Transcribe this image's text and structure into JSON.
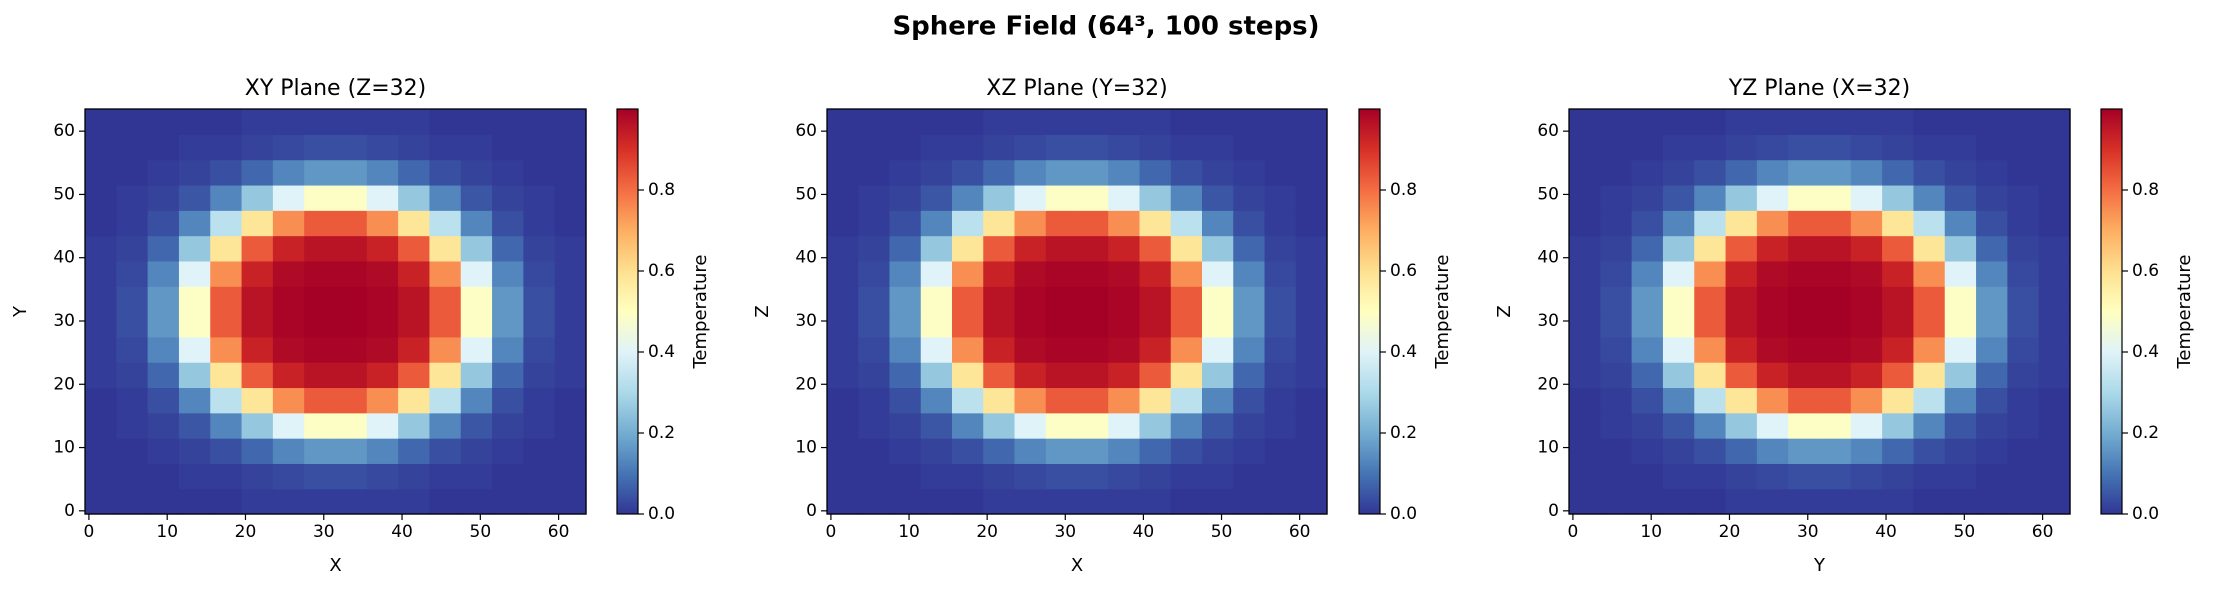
{
  "title": "Sphere Field (64³, 100 steps)",
  "chart_data": [
    {
      "type": "heatmap",
      "title": "XY Plane (Z=32)",
      "xlabel": "X",
      "ylabel": "Y",
      "colorbar_label": "Temperature",
      "colormap": "RdYlBu_r",
      "xlim": [
        -0.5,
        63.5
      ],
      "ylim": [
        -0.5,
        63.5
      ],
      "xticks": [
        0,
        10,
        20,
        30,
        40,
        50,
        60
      ],
      "yticks": [
        0,
        10,
        20,
        30,
        40,
        50,
        60
      ],
      "clim": [
        0,
        1
      ],
      "cticks": [
        {
          "value": 0,
          "label": "0.0"
        },
        {
          "value": 0.2,
          "label": "0.2"
        },
        {
          "value": 0.4,
          "label": "0.4"
        },
        {
          "value": 0.6,
          "label": "0.6"
        },
        {
          "value": 0.8,
          "label": "0.8"
        }
      ],
      "values": [
        [
          0,
          0,
          0,
          0,
          0,
          0.01,
          0.01,
          0.01,
          0.01,
          0.01,
          0.01,
          0,
          0,
          0,
          0,
          0
        ],
        [
          0,
          0,
          0,
          0.01,
          0.01,
          0.02,
          0.03,
          0.04,
          0.04,
          0.03,
          0.02,
          0.01,
          0.01,
          0,
          0,
          0
        ],
        [
          0,
          0,
          0.01,
          0.02,
          0.04,
          0.08,
          0.13,
          0.16,
          0.16,
          0.13,
          0.08,
          0.04,
          0.02,
          0.01,
          0,
          0
        ],
        [
          0,
          0.01,
          0.02,
          0.05,
          0.13,
          0.26,
          0.4,
          0.49,
          0.49,
          0.4,
          0.26,
          0.13,
          0.05,
          0.02,
          0.01,
          0
        ],
        [
          0,
          0.01,
          0.04,
          0.13,
          0.33,
          0.58,
          0.75,
          0.83,
          0.83,
          0.75,
          0.58,
          0.33,
          0.13,
          0.04,
          0.01,
          0
        ],
        [
          0.01,
          0.02,
          0.08,
          0.26,
          0.58,
          0.83,
          0.93,
          0.96,
          0.96,
          0.93,
          0.83,
          0.58,
          0.26,
          0.08,
          0.02,
          0.01
        ],
        [
          0.01,
          0.03,
          0.13,
          0.4,
          0.75,
          0.93,
          0.98,
          0.99,
          0.99,
          0.98,
          0.93,
          0.75,
          0.4,
          0.13,
          0.03,
          0.01
        ],
        [
          0.01,
          0.04,
          0.16,
          0.49,
          0.83,
          0.96,
          0.99,
          1,
          1,
          0.99,
          0.96,
          0.83,
          0.49,
          0.16,
          0.04,
          0.01
        ],
        [
          0.01,
          0.04,
          0.16,
          0.49,
          0.83,
          0.96,
          0.99,
          1,
          1,
          0.99,
          0.96,
          0.83,
          0.49,
          0.16,
          0.04,
          0.01
        ],
        [
          0.01,
          0.03,
          0.13,
          0.4,
          0.75,
          0.93,
          0.98,
          0.99,
          0.99,
          0.98,
          0.93,
          0.75,
          0.4,
          0.13,
          0.03,
          0.01
        ],
        [
          0.01,
          0.02,
          0.08,
          0.26,
          0.58,
          0.83,
          0.93,
          0.96,
          0.96,
          0.93,
          0.83,
          0.58,
          0.26,
          0.08,
          0.02,
          0.01
        ],
        [
          0,
          0.01,
          0.04,
          0.13,
          0.33,
          0.58,
          0.75,
          0.83,
          0.83,
          0.75,
          0.58,
          0.33,
          0.13,
          0.04,
          0.01,
          0
        ],
        [
          0,
          0.01,
          0.02,
          0.05,
          0.13,
          0.26,
          0.4,
          0.49,
          0.49,
          0.4,
          0.26,
          0.13,
          0.05,
          0.02,
          0.01,
          0
        ],
        [
          0,
          0,
          0.01,
          0.02,
          0.04,
          0.08,
          0.13,
          0.16,
          0.16,
          0.13,
          0.08,
          0.04,
          0.02,
          0.01,
          0,
          0
        ],
        [
          0,
          0,
          0,
          0.01,
          0.01,
          0.02,
          0.03,
          0.04,
          0.04,
          0.03,
          0.02,
          0.01,
          0.01,
          0,
          0,
          0
        ],
        [
          0,
          0,
          0,
          0,
          0,
          0.01,
          0.01,
          0.01,
          0.01,
          0.01,
          0.01,
          0,
          0,
          0,
          0,
          0
        ]
      ]
    },
    {
      "type": "heatmap",
      "title": "XZ Plane (Y=32)",
      "xlabel": "X",
      "ylabel": "Z",
      "colorbar_label": "Temperature",
      "colormap": "RdYlBu_r",
      "xlim": [
        -0.5,
        63.5
      ],
      "ylim": [
        -0.5,
        63.5
      ],
      "xticks": [
        0,
        10,
        20,
        30,
        40,
        50,
        60
      ],
      "yticks": [
        0,
        10,
        20,
        30,
        40,
        50,
        60
      ],
      "clim": [
        0,
        1
      ],
      "cticks": [
        {
          "value": 0,
          "label": "0.0"
        },
        {
          "value": 0.2,
          "label": "0.2"
        },
        {
          "value": 0.4,
          "label": "0.4"
        },
        {
          "value": 0.6,
          "label": "0.6"
        },
        {
          "value": 0.8,
          "label": "0.8"
        }
      ],
      "values": [
        [
          0,
          0,
          0,
          0,
          0,
          0.01,
          0.01,
          0.01,
          0.01,
          0.01,
          0.01,
          0,
          0,
          0,
          0,
          0
        ],
        [
          0,
          0,
          0,
          0.01,
          0.01,
          0.02,
          0.03,
          0.04,
          0.04,
          0.03,
          0.02,
          0.01,
          0.01,
          0,
          0,
          0
        ],
        [
          0,
          0,
          0.01,
          0.02,
          0.04,
          0.08,
          0.13,
          0.16,
          0.16,
          0.13,
          0.08,
          0.04,
          0.02,
          0.01,
          0,
          0
        ],
        [
          0,
          0.01,
          0.02,
          0.05,
          0.13,
          0.26,
          0.4,
          0.49,
          0.49,
          0.4,
          0.26,
          0.13,
          0.05,
          0.02,
          0.01,
          0
        ],
        [
          0,
          0.01,
          0.04,
          0.13,
          0.33,
          0.58,
          0.75,
          0.83,
          0.83,
          0.75,
          0.58,
          0.33,
          0.13,
          0.04,
          0.01,
          0
        ],
        [
          0.01,
          0.02,
          0.08,
          0.26,
          0.58,
          0.83,
          0.93,
          0.96,
          0.96,
          0.93,
          0.83,
          0.58,
          0.26,
          0.08,
          0.02,
          0.01
        ],
        [
          0.01,
          0.03,
          0.13,
          0.4,
          0.75,
          0.93,
          0.98,
          0.99,
          0.99,
          0.98,
          0.93,
          0.75,
          0.4,
          0.13,
          0.03,
          0.01
        ],
        [
          0.01,
          0.04,
          0.16,
          0.49,
          0.83,
          0.96,
          0.99,
          1,
          1,
          0.99,
          0.96,
          0.83,
          0.49,
          0.16,
          0.04,
          0.01
        ],
        [
          0.01,
          0.04,
          0.16,
          0.49,
          0.83,
          0.96,
          0.99,
          1,
          1,
          0.99,
          0.96,
          0.83,
          0.49,
          0.16,
          0.04,
          0.01
        ],
        [
          0.01,
          0.03,
          0.13,
          0.4,
          0.75,
          0.93,
          0.98,
          0.99,
          0.99,
          0.98,
          0.93,
          0.75,
          0.4,
          0.13,
          0.03,
          0.01
        ],
        [
          0.01,
          0.02,
          0.08,
          0.26,
          0.58,
          0.83,
          0.93,
          0.96,
          0.96,
          0.93,
          0.83,
          0.58,
          0.26,
          0.08,
          0.02,
          0.01
        ],
        [
          0,
          0.01,
          0.04,
          0.13,
          0.33,
          0.58,
          0.75,
          0.83,
          0.83,
          0.75,
          0.58,
          0.33,
          0.13,
          0.04,
          0.01,
          0
        ],
        [
          0,
          0.01,
          0.02,
          0.05,
          0.13,
          0.26,
          0.4,
          0.49,
          0.49,
          0.4,
          0.26,
          0.13,
          0.05,
          0.02,
          0.01,
          0
        ],
        [
          0,
          0,
          0.01,
          0.02,
          0.04,
          0.08,
          0.13,
          0.16,
          0.16,
          0.13,
          0.08,
          0.04,
          0.02,
          0.01,
          0,
          0
        ],
        [
          0,
          0,
          0,
          0.01,
          0.01,
          0.02,
          0.03,
          0.04,
          0.04,
          0.03,
          0.02,
          0.01,
          0.01,
          0,
          0,
          0
        ],
        [
          0,
          0,
          0,
          0,
          0,
          0.01,
          0.01,
          0.01,
          0.01,
          0.01,
          0.01,
          0,
          0,
          0,
          0,
          0
        ]
      ]
    },
    {
      "type": "heatmap",
      "title": "YZ Plane (X=32)",
      "xlabel": "Y",
      "ylabel": "Z",
      "colorbar_label": "Temperature",
      "colormap": "RdYlBu_r",
      "xlim": [
        -0.5,
        63.5
      ],
      "ylim": [
        -0.5,
        63.5
      ],
      "xticks": [
        0,
        10,
        20,
        30,
        40,
        50,
        60
      ],
      "yticks": [
        0,
        10,
        20,
        30,
        40,
        50,
        60
      ],
      "clim": [
        0,
        1
      ],
      "cticks": [
        {
          "value": 0,
          "label": "0.0"
        },
        {
          "value": 0.2,
          "label": "0.2"
        },
        {
          "value": 0.4,
          "label": "0.4"
        },
        {
          "value": 0.6,
          "label": "0.6"
        },
        {
          "value": 0.8,
          "label": "0.8"
        }
      ],
      "values": [
        [
          0,
          0,
          0,
          0,
          0,
          0.01,
          0.01,
          0.01,
          0.01,
          0.01,
          0.01,
          0,
          0,
          0,
          0,
          0
        ],
        [
          0,
          0,
          0,
          0.01,
          0.01,
          0.02,
          0.03,
          0.04,
          0.04,
          0.03,
          0.02,
          0.01,
          0.01,
          0,
          0,
          0
        ],
        [
          0,
          0,
          0.01,
          0.02,
          0.04,
          0.08,
          0.13,
          0.16,
          0.16,
          0.13,
          0.08,
          0.04,
          0.02,
          0.01,
          0,
          0
        ],
        [
          0,
          0.01,
          0.02,
          0.05,
          0.13,
          0.26,
          0.4,
          0.49,
          0.49,
          0.4,
          0.26,
          0.13,
          0.05,
          0.02,
          0.01,
          0
        ],
        [
          0,
          0.01,
          0.04,
          0.13,
          0.33,
          0.58,
          0.75,
          0.83,
          0.83,
          0.75,
          0.58,
          0.33,
          0.13,
          0.04,
          0.01,
          0
        ],
        [
          0.01,
          0.02,
          0.08,
          0.26,
          0.58,
          0.83,
          0.93,
          0.96,
          0.96,
          0.93,
          0.83,
          0.58,
          0.26,
          0.08,
          0.02,
          0.01
        ],
        [
          0.01,
          0.03,
          0.13,
          0.4,
          0.75,
          0.93,
          0.98,
          0.99,
          0.99,
          0.98,
          0.93,
          0.75,
          0.4,
          0.13,
          0.03,
          0.01
        ],
        [
          0.01,
          0.04,
          0.16,
          0.49,
          0.83,
          0.96,
          0.99,
          1,
          1,
          0.99,
          0.96,
          0.83,
          0.49,
          0.16,
          0.04,
          0.01
        ],
        [
          0.01,
          0.04,
          0.16,
          0.49,
          0.83,
          0.96,
          0.99,
          1,
          1,
          0.99,
          0.96,
          0.83,
          0.49,
          0.16,
          0.04,
          0.01
        ],
        [
          0.01,
          0.03,
          0.13,
          0.4,
          0.75,
          0.93,
          0.98,
          0.99,
          0.99,
          0.98,
          0.93,
          0.75,
          0.4,
          0.13,
          0.03,
          0.01
        ],
        [
          0.01,
          0.02,
          0.08,
          0.26,
          0.58,
          0.83,
          0.93,
          0.96,
          0.96,
          0.93,
          0.83,
          0.58,
          0.26,
          0.08,
          0.02,
          0.01
        ],
        [
          0,
          0.01,
          0.04,
          0.13,
          0.33,
          0.58,
          0.75,
          0.83,
          0.83,
          0.75,
          0.58,
          0.33,
          0.13,
          0.04,
          0.01,
          0
        ],
        [
          0,
          0.01,
          0.02,
          0.05,
          0.13,
          0.26,
          0.4,
          0.49,
          0.49,
          0.4,
          0.26,
          0.13,
          0.05,
          0.02,
          0.01,
          0
        ],
        [
          0,
          0,
          0.01,
          0.02,
          0.04,
          0.08,
          0.13,
          0.16,
          0.16,
          0.13,
          0.08,
          0.04,
          0.02,
          0.01,
          0,
          0
        ],
        [
          0,
          0,
          0,
          0.01,
          0.01,
          0.02,
          0.03,
          0.04,
          0.04,
          0.03,
          0.02,
          0.01,
          0.01,
          0,
          0,
          0
        ],
        [
          0,
          0,
          0,
          0,
          0,
          0.01,
          0.01,
          0.01,
          0.01,
          0.01,
          0.01,
          0,
          0,
          0,
          0,
          0
        ]
      ]
    }
  ]
}
